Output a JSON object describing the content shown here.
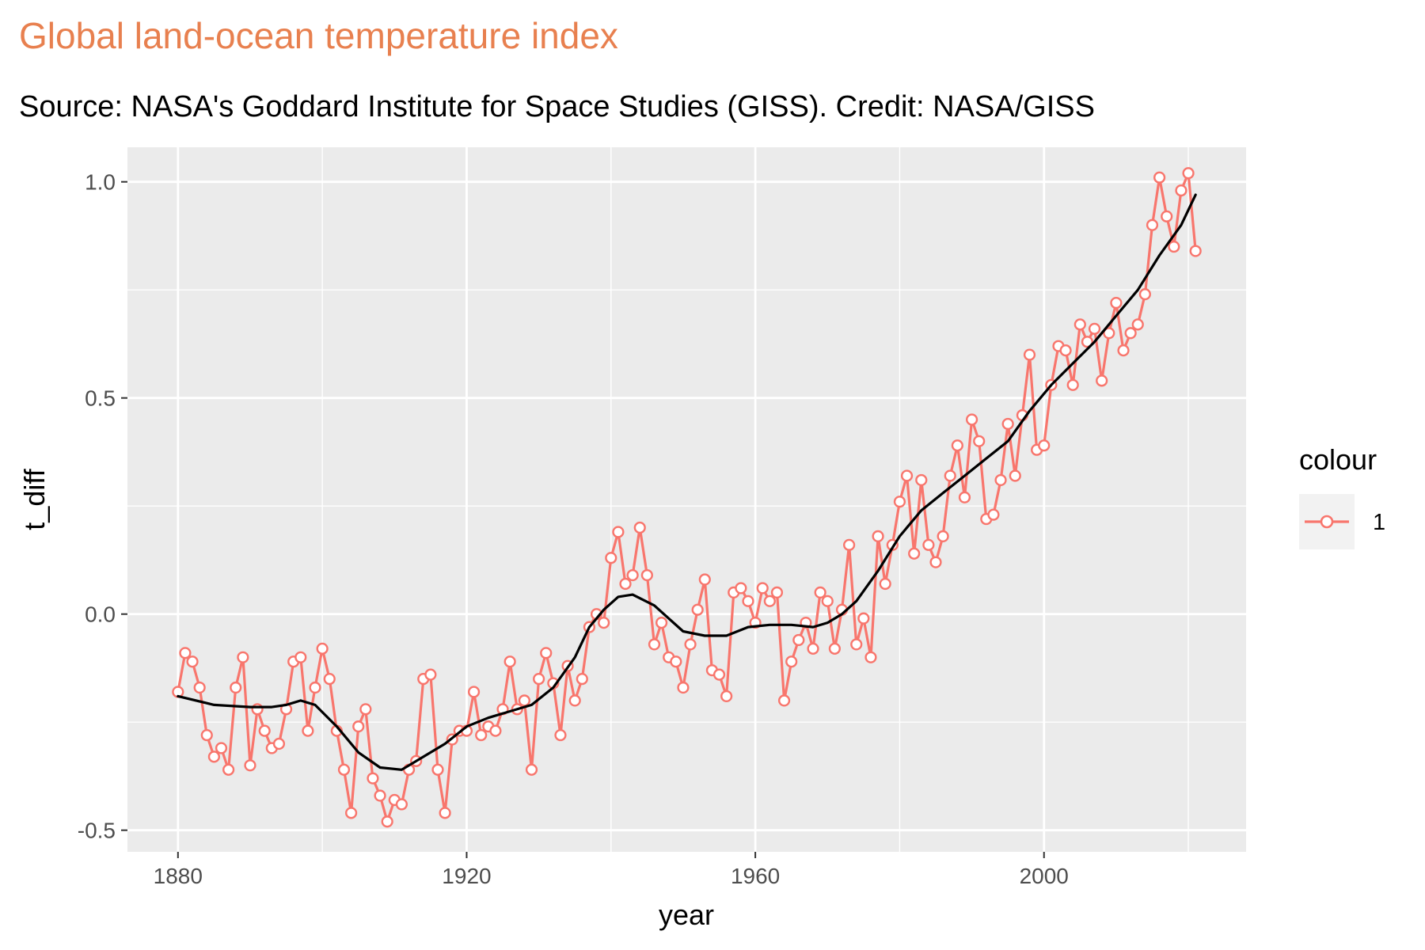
{
  "chart_data": {
    "type": "line",
    "title": "Global land-ocean temperature index",
    "subtitle": "Source: NASA's Goddard Institute for Space Studies (GISS). Credit: NASA/GISS",
    "xlabel": "year",
    "ylabel": "t_diff",
    "xlim": [
      1873,
      2028
    ],
    "ylim": [
      -0.55,
      1.08
    ],
    "x_ticks": [
      1880,
      1920,
      1960,
      2000
    ],
    "x_tick_labels": [
      "1880",
      "1920",
      "1960",
      "2000"
    ],
    "y_ticks": [
      -0.5,
      0.0,
      0.5,
      1.0
    ],
    "y_tick_labels": [
      "-0.5",
      "0.0",
      "0.5",
      "1.0"
    ],
    "grid": true,
    "legend": {
      "title": "colour",
      "position": "right",
      "entries": [
        "1"
      ]
    },
    "colors": {
      "series": "#F8766D",
      "smooth": "#000000",
      "panel": "#EBEBEB",
      "grid": "#FFFFFF",
      "title": "#E8804F"
    },
    "x": [
      1880,
      1881,
      1882,
      1883,
      1884,
      1885,
      1886,
      1887,
      1888,
      1889,
      1890,
      1891,
      1892,
      1893,
      1894,
      1895,
      1896,
      1897,
      1898,
      1899,
      1900,
      1901,
      1902,
      1903,
      1904,
      1905,
      1906,
      1907,
      1908,
      1909,
      1910,
      1911,
      1912,
      1913,
      1914,
      1915,
      1916,
      1917,
      1918,
      1919,
      1920,
      1921,
      1922,
      1923,
      1924,
      1925,
      1926,
      1927,
      1928,
      1929,
      1930,
      1931,
      1932,
      1933,
      1934,
      1935,
      1936,
      1937,
      1938,
      1939,
      1940,
      1941,
      1942,
      1943,
      1944,
      1945,
      1946,
      1947,
      1948,
      1949,
      1950,
      1951,
      1952,
      1953,
      1954,
      1955,
      1956,
      1957,
      1958,
      1959,
      1960,
      1961,
      1962,
      1963,
      1964,
      1965,
      1966,
      1967,
      1968,
      1969,
      1970,
      1971,
      1972,
      1973,
      1974,
      1975,
      1976,
      1977,
      1978,
      1979,
      1980,
      1981,
      1982,
      1983,
      1984,
      1985,
      1986,
      1987,
      1988,
      1989,
      1990,
      1991,
      1992,
      1993,
      1994,
      1995,
      1996,
      1997,
      1998,
      1999,
      2000,
      2001,
      2002,
      2003,
      2004,
      2005,
      2006,
      2007,
      2008,
      2009,
      2010,
      2011,
      2012,
      2013,
      2014,
      2015,
      2016,
      2017,
      2018,
      2019,
      2020,
      2021
    ],
    "series": [
      {
        "values": [
          -0.18,
          -0.09,
          -0.11,
          -0.17,
          -0.28,
          -0.33,
          -0.31,
          -0.36,
          -0.17,
          -0.1,
          -0.35,
          -0.22,
          -0.27,
          -0.31,
          -0.3,
          -0.22,
          -0.11,
          -0.1,
          -0.27,
          -0.17,
          -0.08,
          -0.15,
          -0.27,
          -0.36,
          -0.46,
          -0.26,
          -0.22,
          -0.38,
          -0.42,
          -0.48,
          -0.43,
          -0.44,
          -0.36,
          -0.34,
          -0.15,
          -0.14,
          -0.36,
          -0.46,
          -0.29,
          -0.27,
          -0.27,
          -0.18,
          -0.28,
          -0.26,
          -0.27,
          -0.22,
          -0.11,
          -0.22,
          -0.2,
          -0.36,
          -0.15,
          -0.09,
          -0.16,
          -0.28,
          -0.12,
          -0.2,
          -0.15,
          -0.03,
          0.0,
          -0.02,
          0.13,
          0.19,
          0.07,
          0.09,
          0.2,
          0.09,
          -0.07,
          -0.02,
          -0.1,
          -0.11,
          -0.17,
          -0.07,
          0.01,
          0.08,
          -0.13,
          -0.14,
          -0.19,
          0.05,
          0.06,
          0.03,
          -0.02,
          0.06,
          0.03,
          0.05,
          -0.2,
          -0.11,
          -0.06,
          -0.02,
          -0.08,
          0.05,
          0.03,
          -0.08,
          0.01,
          0.16,
          -0.07,
          -0.01,
          -0.1,
          0.18,
          0.07,
          0.16,
          0.26,
          0.32,
          0.14,
          0.31,
          0.16,
          0.12,
          0.18,
          0.32,
          0.39,
          0.27,
          0.45,
          0.4,
          0.22,
          0.23,
          0.31,
          0.44,
          0.32,
          0.46,
          0.6,
          0.38,
          0.39,
          0.53,
          0.62,
          0.61,
          0.53,
          0.67,
          0.63,
          0.66,
          0.54,
          0.65,
          0.72,
          0.61,
          0.65,
          0.67,
          0.74,
          0.9,
          1.01,
          0.92,
          0.85,
          0.98,
          1.02,
          0.84
        ]
      }
    ],
    "smooth": {
      "x": [
        1880,
        1885,
        1890,
        1893,
        1895,
        1897,
        1899,
        1902,
        1905,
        1908,
        1911,
        1914,
        1917,
        1920,
        1923,
        1926,
        1929,
        1932,
        1935,
        1937,
        1939,
        1941,
        1943,
        1946,
        1948,
        1950,
        1953,
        1956,
        1959,
        1962,
        1965,
        1968,
        1970,
        1972,
        1974,
        1977,
        1980,
        1983,
        1986,
        1989,
        1992,
        1995,
        1998,
        2001,
        2004,
        2007,
        2010,
        2013,
        2016,
        2019,
        2021
      ],
      "y": [
        -0.19,
        -0.21,
        -0.215,
        -0.215,
        -0.21,
        -0.2,
        -0.21,
        -0.26,
        -0.32,
        -0.355,
        -0.36,
        -0.33,
        -0.3,
        -0.26,
        -0.24,
        -0.225,
        -0.21,
        -0.17,
        -0.1,
        -0.03,
        0.01,
        0.04,
        0.045,
        0.02,
        -0.01,
        -0.04,
        -0.05,
        -0.05,
        -0.03,
        -0.025,
        -0.025,
        -0.03,
        -0.02,
        0.0,
        0.03,
        0.1,
        0.18,
        0.24,
        0.28,
        0.32,
        0.36,
        0.4,
        0.47,
        0.53,
        0.58,
        0.63,
        0.69,
        0.75,
        0.83,
        0.9,
        0.97
      ]
    }
  }
}
